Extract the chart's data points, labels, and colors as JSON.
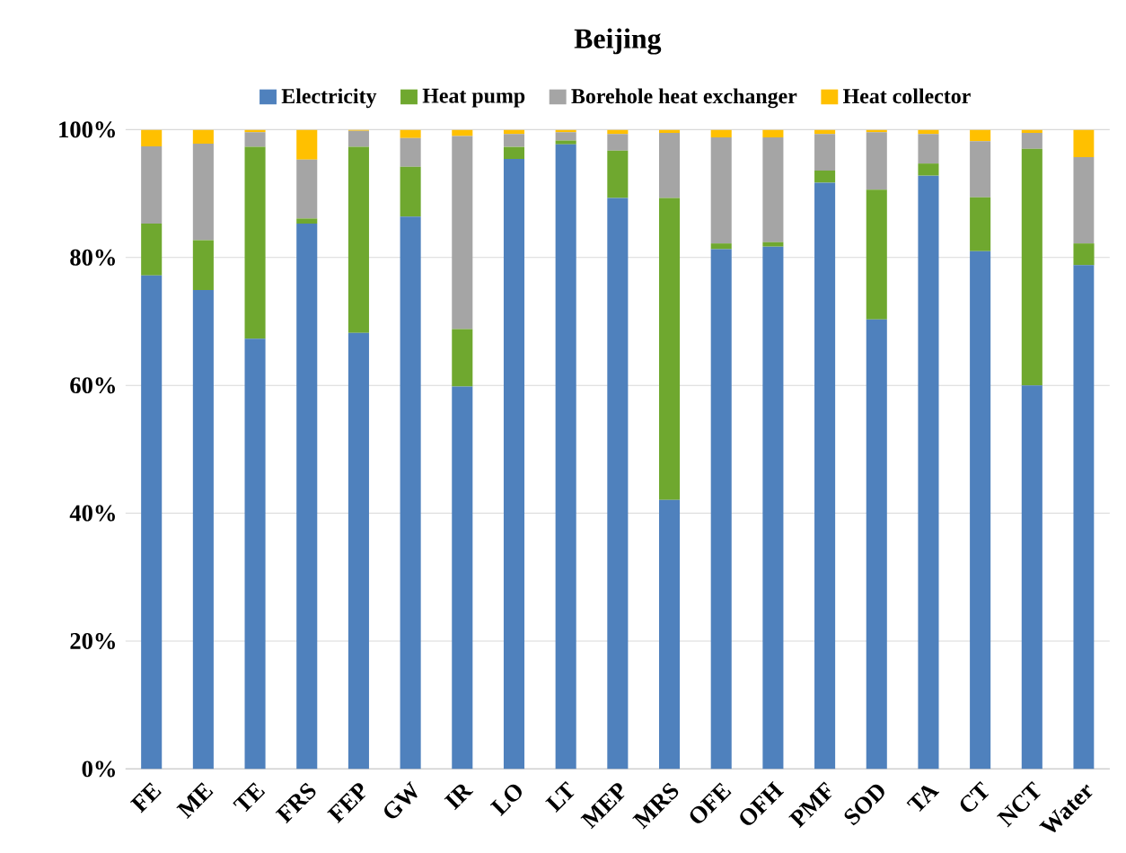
{
  "chart_data": {
    "type": "bar",
    "stacked": true,
    "title": "Beijing",
    "categories": [
      "FE",
      "ME",
      "TE",
      "FRS",
      "FEP",
      "GW",
      "IR",
      "LO",
      "LT",
      "MEP",
      "MRS",
      "OFE",
      "OFH",
      "PMF",
      "SOD",
      "TA",
      "CT",
      "NCT",
      "Water"
    ],
    "series": [
      {
        "name": "Electricity",
        "color": "#4f81bd",
        "values": [
          77.2,
          74.9,
          67.3,
          85.3,
          68.2,
          86.4,
          59.8,
          95.4,
          97.7,
          89.3,
          42.1,
          81.3,
          81.7,
          91.7,
          70.3,
          92.8,
          81.0,
          60.0,
          78.8
        ]
      },
      {
        "name": "Heat pump",
        "color": "#6fa82f",
        "values": [
          8.1,
          7.8,
          30.0,
          0.8,
          29.1,
          7.8,
          9.0,
          1.9,
          0.6,
          7.4,
          47.2,
          0.9,
          0.7,
          1.9,
          20.3,
          1.9,
          8.4,
          37.0,
          3.4
        ]
      },
      {
        "name": "Borehole heat exchanger",
        "color": "#a5a5a5",
        "values": [
          12.1,
          15.1,
          2.3,
          9.2,
          2.5,
          4.5,
          30.2,
          2.0,
          1.3,
          2.6,
          10.2,
          16.6,
          16.4,
          5.7,
          9.0,
          4.6,
          8.8,
          2.5,
          13.5
        ]
      },
      {
        "name": "Heat collector",
        "color": "#ffc000",
        "values": [
          2.6,
          2.2,
          0.4,
          4.7,
          0.2,
          1.3,
          1.0,
          0.7,
          0.4,
          0.7,
          0.5,
          1.2,
          1.2,
          0.7,
          0.4,
          0.7,
          1.8,
          0.5,
          4.3
        ]
      }
    ],
    "ylim": [
      0,
      100
    ],
    "yticks": [
      {
        "value": 0,
        "label": "0%"
      },
      {
        "value": 20,
        "label": "20%"
      },
      {
        "value": 40,
        "label": "40%"
      },
      {
        "value": 60,
        "label": "60%"
      },
      {
        "value": 80,
        "label": "80%"
      },
      {
        "value": 100,
        "label": "100%"
      }
    ],
    "grid": "y",
    "legend": "top"
  }
}
